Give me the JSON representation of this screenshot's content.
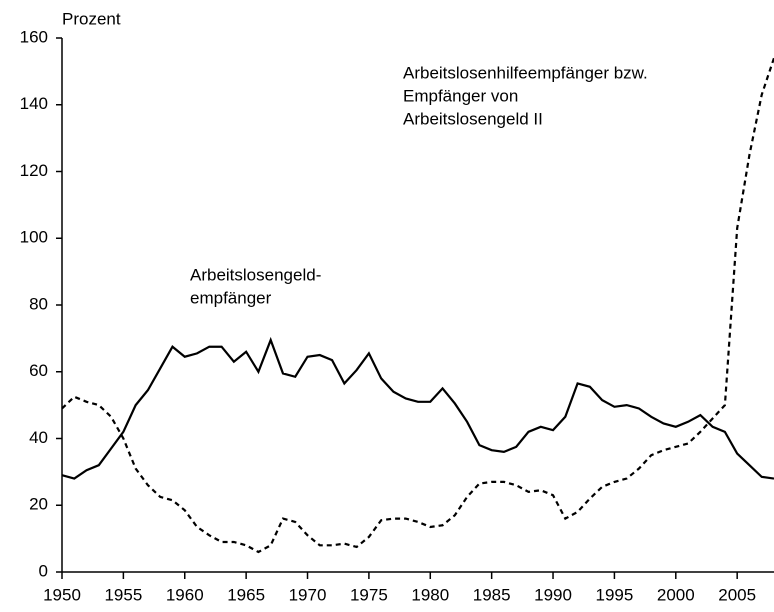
{
  "chart_data": {
    "type": "line",
    "ylabel": "Prozent",
    "x": [
      1950,
      1951,
      1952,
      1953,
      1954,
      1955,
      1956,
      1957,
      1958,
      1959,
      1960,
      1961,
      1962,
      1963,
      1964,
      1965,
      1966,
      1967,
      1968,
      1969,
      1970,
      1971,
      1972,
      1973,
      1974,
      1975,
      1976,
      1977,
      1978,
      1979,
      1980,
      1981,
      1982,
      1983,
      1984,
      1985,
      1986,
      1987,
      1988,
      1989,
      1990,
      1991,
      1992,
      1993,
      1994,
      1995,
      1996,
      1997,
      1998,
      1999,
      2000,
      2001,
      2002,
      2003,
      2004,
      2005,
      2006,
      2007,
      2008
    ],
    "series": [
      {
        "color": "#000000",
        "dash": "solid",
        "values": [
          29,
          28,
          30.5,
          32,
          37,
          42,
          50,
          54.5,
          61,
          67.5,
          64.5,
          65.5,
          67.5,
          67.5,
          63,
          66,
          60,
          69.5,
          59.5,
          58.5,
          64.5,
          65,
          63.5,
          56.5,
          60.5,
          65.5,
          58,
          54,
          52,
          51,
          51,
          55,
          50.5,
          45,
          38,
          36.5,
          36,
          37.5,
          42,
          43.5,
          42.5,
          46.5,
          56.5,
          55.5,
          51.5,
          49.5,
          50,
          49,
          46.5,
          44.5,
          43.5,
          45,
          47,
          43.5,
          42,
          35.5,
          32,
          28.5,
          28
        ]
      },
      {
        "color": "#000000",
        "dash": "dashed",
        "values": [
          49,
          52.5,
          51,
          50,
          46.5,
          40,
          31,
          26,
          22.5,
          21.5,
          18.5,
          13.5,
          11,
          9,
          9,
          8,
          6,
          8,
          16,
          15,
          11,
          8,
          8,
          8.5,
          7.5,
          10.5,
          15.5,
          16,
          16,
          15,
          13.5,
          14,
          17,
          22.5,
          26.5,
          27,
          27,
          26,
          24,
          24.5,
          23,
          16,
          18,
          22,
          25.5,
          27,
          28,
          31,
          35,
          36.5,
          37.5,
          38.5,
          42,
          46,
          50,
          103,
          125,
          143,
          154
        ]
      }
    ],
    "annotations": [
      {
        "lines": [
          "Arbeitslosengeld-",
          "empfänger"
        ]
      },
      {
        "lines": [
          "Arbeitslosenhilfeempfänger bzw.",
          "Empfänger von",
          "Arbeitslosengeld II"
        ]
      }
    ],
    "xlim": [
      1950,
      2008
    ],
    "xticks": [
      1950,
      1955,
      1960,
      1965,
      1970,
      1975,
      1980,
      1985,
      1990,
      1995,
      2000,
      2005
    ],
    "ylim": [
      0,
      160
    ],
    "yticks": [
      0,
      20,
      40,
      60,
      80,
      100,
      120,
      140,
      160
    ],
    "grid": false
  }
}
